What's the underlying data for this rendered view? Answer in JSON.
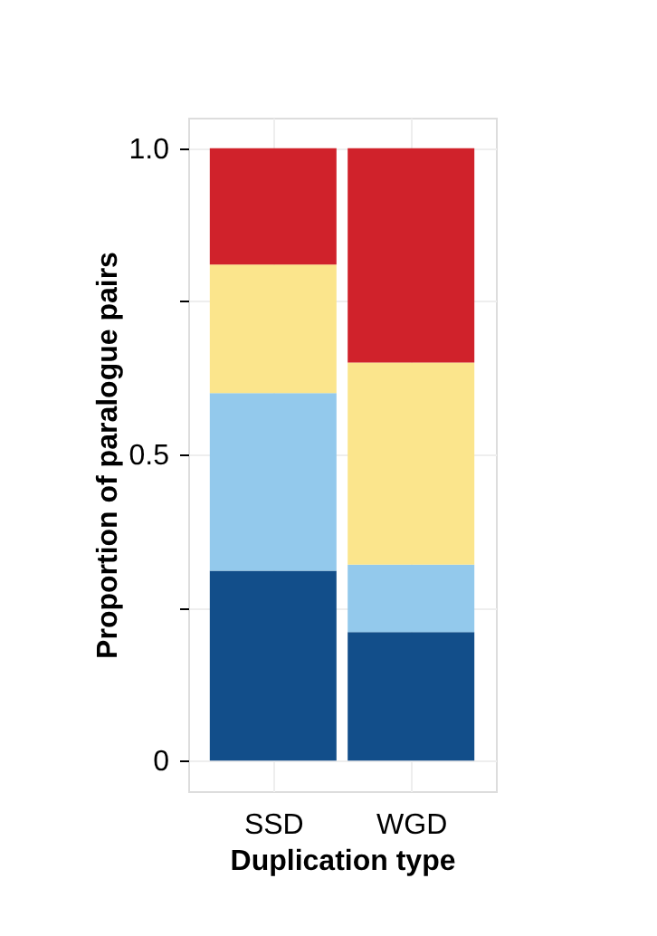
{
  "chart_data": {
    "type": "bar",
    "stacked": true,
    "xlabel": "Duplication type",
    "ylabel": "Proportion of paralogue pairs",
    "categories": [
      "SSD",
      "WGD"
    ],
    "series": [
      {
        "color": "#124e8a",
        "values": [
          0.31,
          0.21
        ]
      },
      {
        "color": "#93c9ec",
        "values": [
          0.29,
          0.11
        ]
      },
      {
        "color": "#fbe58c",
        "values": [
          0.21,
          0.33
        ]
      },
      {
        "color": "#d0222b",
        "values": [
          0.19,
          0.35
        ]
      }
    ],
    "ylim": [
      -0.05,
      1.05
    ],
    "yticks": [
      0,
      {
        "value": 0.25,
        "label": null
      },
      0.5,
      {
        "value": 0.75,
        "label": null
      },
      {
        "value": 1.0,
        "label": "1.0"
      }
    ],
    "grid": true
  }
}
